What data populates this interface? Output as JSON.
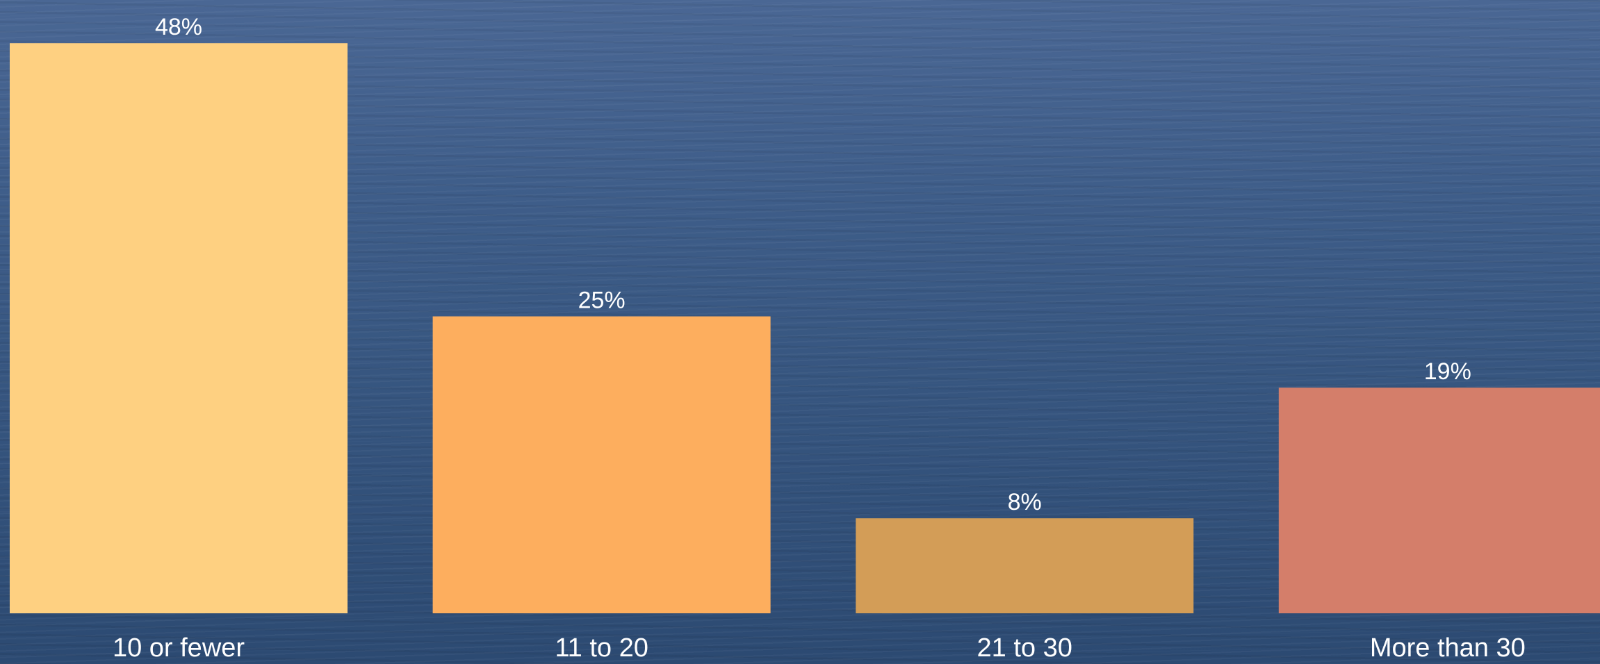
{
  "chart_data": {
    "type": "bar",
    "title": "",
    "xlabel": "",
    "ylabel": "",
    "categories": [
      "10 or fewer",
      "11 to 20",
      "21 to 30",
      "More than 30"
    ],
    "values": [
      48,
      25,
      8,
      19
    ],
    "value_labels": [
      "48%",
      "25%",
      "8%",
      "19%"
    ],
    "ylim": [
      0,
      50
    ],
    "grid": false,
    "legend": "none",
    "colors": [
      "#fed081",
      "#fdae5e",
      "#d39d57",
      "#d47e6a"
    ]
  }
}
